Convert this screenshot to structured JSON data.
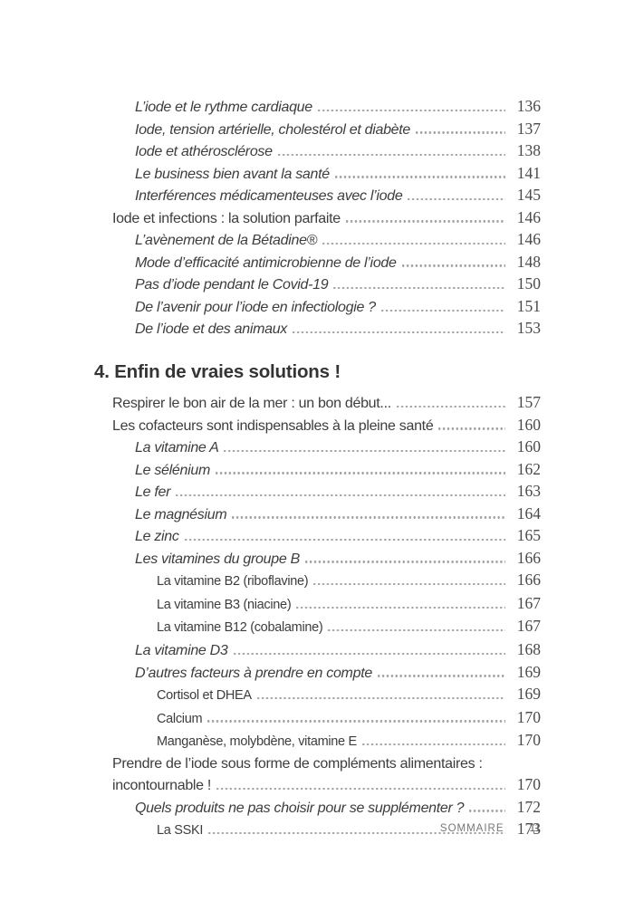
{
  "colors": {
    "text": "#3d3d3d",
    "page_number": "#4a4a4a",
    "leader_dot": "#a0a0a0",
    "footer": "#767676"
  },
  "footer": {
    "label": "SOMMAIRE",
    "page_number": "11"
  },
  "toc": {
    "sections": [
      {
        "heading": null,
        "items": [
          {
            "label": "L’iode et le rythme cardiaque",
            "page": "136",
            "level": 2
          },
          {
            "label": "Iode, tension artérielle, cholestérol et diabète",
            "page": "137",
            "level": 2
          },
          {
            "label": "Iode et athérosclérose",
            "page": "138",
            "level": 2
          },
          {
            "label": "Le business bien avant la santé",
            "page": "141",
            "level": 2
          },
          {
            "label": "Interférences médicamenteuses avec l’iode",
            "page": "145",
            "level": 2
          },
          {
            "label": "Iode et infections : la solution parfaite",
            "page": "146",
            "level": 1
          },
          {
            "label": "L’avènement de la Bétadine®",
            "page": "146",
            "level": 2
          },
          {
            "label": "Mode d’efficacité antimicrobienne de l’iode",
            "page": "148",
            "level": 2
          },
          {
            "label": "Pas d’iode pendant le Covid-19",
            "page": "150",
            "level": 2
          },
          {
            "label": "De l’avenir pour l’iode en infectiologie ?",
            "page": "151",
            "level": 2
          },
          {
            "label": "De l’iode et des animaux",
            "page": "153",
            "level": 2
          }
        ]
      },
      {
        "heading": "4. Enfin de vraies solutions !",
        "items": [
          {
            "label": "Respirer le bon air de la mer : un bon début...",
            "page": "157",
            "level": 1
          },
          {
            "label": "Les cofacteurs sont indispensables à la pleine santé",
            "page": "160",
            "level": 1
          },
          {
            "label": "La vitamine A",
            "page": "160",
            "level": 2
          },
          {
            "label": "Le sélénium",
            "page": "162",
            "level": 2
          },
          {
            "label": "Le fer",
            "page": "163",
            "level": 2
          },
          {
            "label": "Le magnésium",
            "page": "164",
            "level": 2
          },
          {
            "label": "Le zinc",
            "page": "165",
            "level": 2
          },
          {
            "label": "Les vitamines du groupe B",
            "page": "166",
            "level": 2
          },
          {
            "label": "La vitamine B2 (riboflavine)",
            "page": "166",
            "level": 3
          },
          {
            "label": "La vitamine B3 (niacine)",
            "page": "167",
            "level": 3
          },
          {
            "label": "La vitamine B12 (cobalamine)",
            "page": "167",
            "level": 3
          },
          {
            "label": "La vitamine D3",
            "page": "168",
            "level": 2
          },
          {
            "label": "D’autres facteurs à prendre en compte",
            "page": "169",
            "level": 2
          },
          {
            "label": "Cortisol et DHEA",
            "page": "169",
            "level": 3
          },
          {
            "label": "Calcium",
            "page": "170",
            "level": 3
          },
          {
            "label": "Manganèse, molybdène, vitamine E",
            "page": "170",
            "level": 3
          },
          {
            "label": "Prendre de l’iode sous forme de compléments alimentaires :",
            "label2": "incontournable !",
            "page": "170",
            "level": 1
          },
          {
            "label": "Quels produits ne pas choisir pour se supplémenter ?",
            "page": "172",
            "level": 2
          },
          {
            "label": "La SSKI",
            "page": "173",
            "level": 3
          }
        ]
      }
    ]
  }
}
